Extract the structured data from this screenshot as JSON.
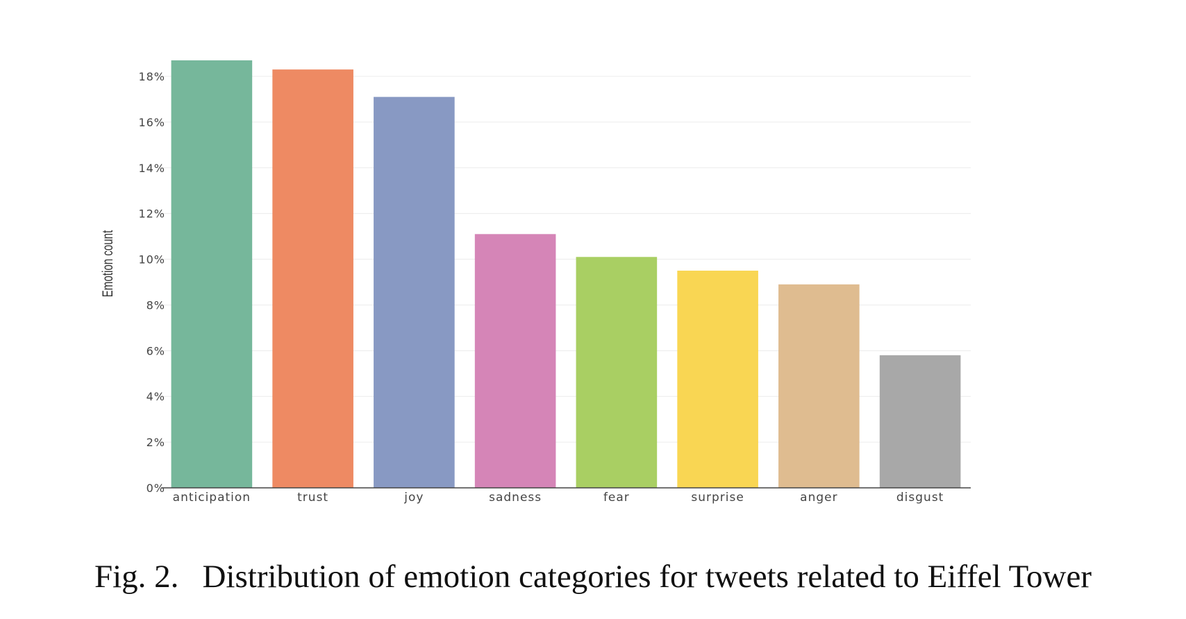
{
  "chart_data": {
    "type": "bar",
    "title": "",
    "xlabel": "",
    "ylabel": "Emotion count",
    "ylim": [
      0,
      18.8
    ],
    "y_ticks": [
      0,
      2,
      4,
      6,
      8,
      10,
      12,
      14,
      16,
      18
    ],
    "y_tick_labels": [
      "0%",
      "2%",
      "4%",
      "6%",
      "8%",
      "10%",
      "12%",
      "14%",
      "16%",
      "18%"
    ],
    "grid": true,
    "legend": "none",
    "categories": [
      "anticipation",
      "trust",
      "joy",
      "sadness",
      "fear",
      "surprise",
      "anger",
      "disgust"
    ],
    "values": [
      18.7,
      18.3,
      17.1,
      11.1,
      10.1,
      9.5,
      8.9,
      5.8
    ],
    "colors": [
      "#76b79b",
      "#ee8a63",
      "#8899c3",
      "#d585b7",
      "#a9cf63",
      "#f9d653",
      "#dfbc90",
      "#a8a8a8"
    ]
  },
  "caption": {
    "number": "Fig. 2.",
    "text": "Distribution of emotion categories for tweets related to Eiffel Tower"
  }
}
